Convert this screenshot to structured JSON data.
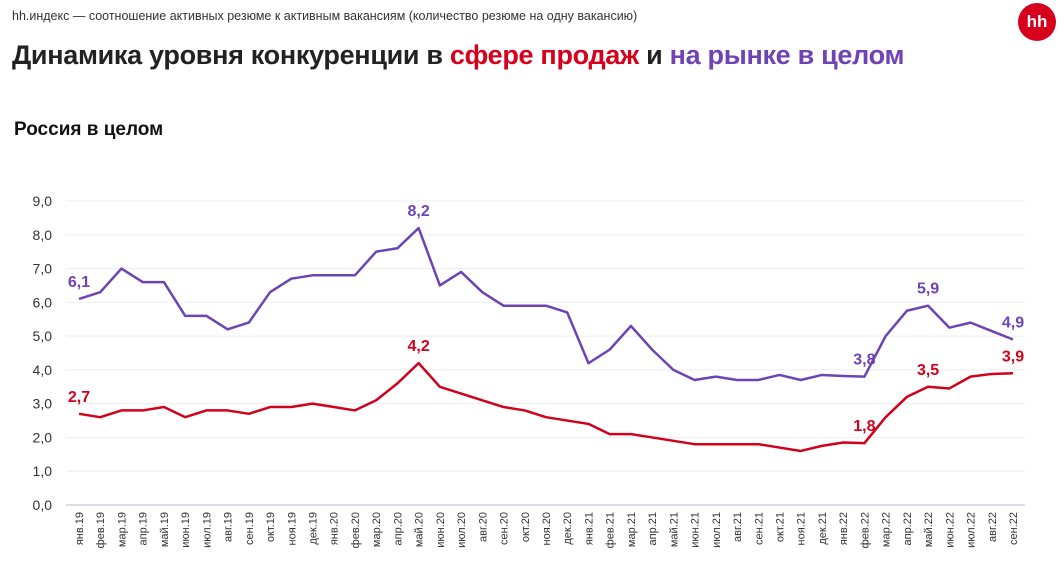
{
  "header": {
    "subtitle": "hh.индекс — соотношение активных резюме к активным вакансиям (количество резюме на одну вакансию)",
    "title_part1": "Динамика уровня конкуренции в ",
    "title_part2": "сфере продаж",
    "title_part3": " и ",
    "title_part4": "на рынке в целом",
    "logo": "hh"
  },
  "chart_data": {
    "type": "line",
    "title": "Россия в целом",
    "xlabel": "",
    "ylabel": "",
    "ylim": [
      0,
      9
    ],
    "yticks": [
      "0,0",
      "1,0",
      "2,0",
      "3,0",
      "4,0",
      "5,0",
      "6,0",
      "7,0",
      "8,0",
      "9,0"
    ],
    "grid": true,
    "categories": [
      "янв.19",
      "фев.19",
      "мар.19",
      "апр.19",
      "май.19",
      "июн.19",
      "июл.19",
      "авг.19",
      "сен.19",
      "окт.19",
      "ноя.19",
      "дек.19",
      "янв.20",
      "фев.20",
      "мар.20",
      "апр.20",
      "май.20",
      "июн.20",
      "июл.20",
      "авг.20",
      "сен.20",
      "окт.20",
      "ноя.20",
      "дек.20",
      "янв.21",
      "фев.21",
      "мар.21",
      "апр.21",
      "май.21",
      "июн.21",
      "июл.21",
      "авг.21",
      "сен.21",
      "окт.21",
      "ноя.21",
      "дек.21",
      "янв.22",
      "фев.22",
      "мар.22",
      "апр.22",
      "май.22",
      "июн.22",
      "июл.22",
      "авг.22",
      "сен.22"
    ],
    "series": [
      {
        "name": "Рынок в целом",
        "color": "#6c44b4",
        "values": [
          6.1,
          6.3,
          7.0,
          6.6,
          6.6,
          5.6,
          5.6,
          5.2,
          5.4,
          6.3,
          6.7,
          6.8,
          6.8,
          6.8,
          7.5,
          7.6,
          8.2,
          6.5,
          6.9,
          6.3,
          5.9,
          5.9,
          5.9,
          5.7,
          4.2,
          4.6,
          5.3,
          4.6,
          4.0,
          3.7,
          3.8,
          3.7,
          3.7,
          3.85,
          3.7,
          3.85,
          3.82,
          3.8,
          5.0,
          5.75,
          5.9,
          5.25,
          5.4,
          5.15,
          4.9
        ],
        "labels": [
          {
            "index": 0,
            "text": "6,1"
          },
          {
            "index": 16,
            "text": "8,2"
          },
          {
            "index": 37,
            "text": "3,8"
          },
          {
            "index": 40,
            "text": "5,9"
          },
          {
            "index": 44,
            "text": "4,9"
          }
        ]
      },
      {
        "name": "Сфера продаж",
        "color": "#d0021b",
        "values": [
          2.7,
          2.6,
          2.8,
          2.8,
          2.9,
          2.6,
          2.8,
          2.8,
          2.7,
          2.9,
          2.9,
          3.0,
          2.9,
          2.8,
          3.1,
          3.6,
          4.2,
          3.5,
          3.3,
          3.1,
          2.9,
          2.8,
          2.6,
          2.5,
          2.4,
          2.1,
          2.1,
          2.0,
          1.9,
          1.8,
          1.8,
          1.8,
          1.8,
          1.7,
          1.6,
          1.75,
          1.85,
          1.83,
          2.6,
          3.2,
          3.5,
          3.45,
          3.8,
          3.88,
          3.9
        ],
        "labels": [
          {
            "index": 0,
            "text": "2,7"
          },
          {
            "index": 16,
            "text": "4,2"
          },
          {
            "index": 37,
            "text": "1,8"
          },
          {
            "index": 40,
            "text": "3,5"
          },
          {
            "index": 44,
            "text": "3,9"
          }
        ]
      }
    ]
  }
}
